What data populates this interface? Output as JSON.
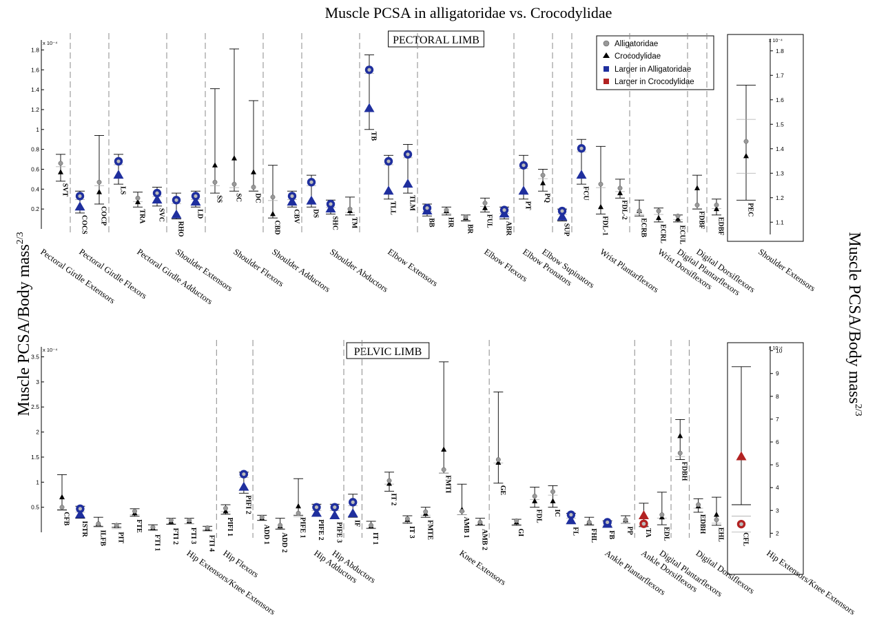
{
  "figure_title": "Muscle PCSA in  alligatoridae vs. Crocodylidae",
  "y_axis_label": "Muscle PCSA/Body mass",
  "y_axis_label_exp": "2/3",
  "legend": {
    "entries": [
      {
        "label": "Alligatoridae",
        "marker": "circle-gray"
      },
      {
        "label": "Crocodylidae",
        "marker": "triangle-black"
      },
      {
        "label": "Larger in Alligatoridae",
        "marker": "square-blue"
      },
      {
        "label": "Larger in Crocodylidae",
        "marker": "square-red"
      }
    ]
  },
  "colors": {
    "alligatoridae": "#999999",
    "crocodylidae": "#000000",
    "larger_alligatoridae": "#1f2f9e",
    "larger_crocodylidae": "#b22222",
    "gridline": "#888888"
  },
  "chart_data": [
    {
      "type": "scatter",
      "title": "PECTORAL LIMB",
      "scale_label": "x 10⁻⁴",
      "ylim": [
        0,
        1.9
      ],
      "yticks": [
        0.2,
        0.4,
        0.6,
        0.8,
        1,
        1.2,
        1.4,
        1.6,
        1.8
      ],
      "ytick_labels": [
        "0.2",
        "0.4",
        "0.6",
        "0.8",
        "1",
        "1.2",
        "1.4",
        "1.6",
        "1.8"
      ],
      "series": [
        {
          "name": "Alligatoridae"
        },
        {
          "name": "Crocodylidae"
        }
      ],
      "muscles": [
        {
          "name": "SVT",
          "a": 0.66,
          "c": 0.57,
          "err": [
            0.48,
            0.75
          ],
          "sig": ""
        },
        {
          "name": "COCS",
          "a": 0.33,
          "c": 0.22,
          "err": [
            0.16,
            0.38
          ],
          "sig": "a"
        },
        {
          "name": "COCP",
          "a": 0.47,
          "c": 0.37,
          "err": [
            0.25,
            0.94
          ],
          "sig": ""
        },
        {
          "name": "LS",
          "a": 0.68,
          "c": 0.54,
          "err": [
            0.45,
            0.75
          ],
          "sig": "a"
        },
        {
          "name": "TRA",
          "a": 0.31,
          "c": 0.27,
          "err": [
            0.22,
            0.37
          ],
          "sig": ""
        },
        {
          "name": "SVC",
          "a": 0.36,
          "c": 0.29,
          "err": [
            0.23,
            0.42
          ],
          "sig": "a"
        },
        {
          "name": "RHO",
          "a": 0.29,
          "c": 0.14,
          "err": [
            0.1,
            0.36
          ],
          "sig": "a"
        },
        {
          "name": "LD",
          "a": 0.33,
          "c": 0.27,
          "err": [
            0.22,
            0.38
          ],
          "sig": "a"
        },
        {
          "name": "SS",
          "a": 0.47,
          "c": 0.64,
          "err": [
            0.36,
            1.41
          ],
          "sig": ""
        },
        {
          "name": "SC",
          "a": 0.45,
          "c": 0.71,
          "err": [
            0.38,
            1.81
          ],
          "sig": ""
        },
        {
          "name": "DC",
          "a": 0.42,
          "c": 0.57,
          "err": [
            0.38,
            1.29
          ],
          "sig": ""
        },
        {
          "name": "CBD",
          "a": 0.32,
          "c": 0.15,
          "err": [
            0.11,
            0.64
          ],
          "sig": ""
        },
        {
          "name": "CBV",
          "a": 0.33,
          "c": 0.27,
          "err": [
            0.22,
            0.38
          ],
          "sig": "a"
        },
        {
          "name": "DS",
          "a": 0.47,
          "c": 0.28,
          "err": [
            0.22,
            0.54
          ],
          "sig": "a"
        },
        {
          "name": "SHC",
          "a": 0.25,
          "c": 0.2,
          "err": [
            0.15,
            0.29
          ],
          "sig": "a"
        },
        {
          "name": "TM",
          "a": 0.2,
          "c": 0.18,
          "err": [
            0.14,
            0.32
          ],
          "sig": ""
        },
        {
          "name": "TB",
          "a": 1.6,
          "c": 1.21,
          "err": [
            1.0,
            1.75
          ],
          "sig": "a"
        },
        {
          "name": "TLL",
          "a": 0.68,
          "c": 0.38,
          "err": [
            0.3,
            0.74
          ],
          "sig": "a"
        },
        {
          "name": "TLM",
          "a": 0.75,
          "c": 0.45,
          "err": [
            0.36,
            0.85
          ],
          "sig": "a"
        },
        {
          "name": "BB",
          "a": 0.21,
          "c": 0.18,
          "err": [
            0.13,
            0.25
          ],
          "sig": "a"
        },
        {
          "name": "HR",
          "a": 0.19,
          "c": 0.18,
          "err": [
            0.14,
            0.22
          ],
          "sig": ""
        },
        {
          "name": "BR",
          "a": 0.12,
          "c": 0.11,
          "err": [
            0.08,
            0.14
          ],
          "sig": ""
        },
        {
          "name": "FUL",
          "a": 0.26,
          "c": 0.21,
          "err": [
            0.17,
            0.31
          ],
          "sig": ""
        },
        {
          "name": "ABR",
          "a": 0.19,
          "c": 0.15,
          "err": [
            0.1,
            0.22
          ],
          "sig": "a"
        },
        {
          "name": "PT",
          "a": 0.64,
          "c": 0.38,
          "err": [
            0.3,
            0.74
          ],
          "sig": "a"
        },
        {
          "name": "PQ",
          "a": 0.54,
          "c": 0.46,
          "err": [
            0.38,
            0.6
          ],
          "sig": ""
        },
        {
          "name": "SUP",
          "a": 0.18,
          "c": 0.12,
          "err": [
            0.08,
            0.2
          ],
          "sig": "a"
        },
        {
          "name": "FCU",
          "a": 0.81,
          "c": 0.54,
          "err": [
            0.45,
            0.9
          ],
          "sig": "a"
        },
        {
          "name": "FDL-1",
          "a": 0.45,
          "c": 0.22,
          "err": [
            0.15,
            0.83
          ],
          "sig": ""
        },
        {
          "name": "FDL-2",
          "a": 0.41,
          "c": 0.36,
          "err": [
            0.31,
            0.5
          ],
          "sig": ""
        },
        {
          "name": "ECRB",
          "a": 0.18,
          "c": 0.18,
          "err": [
            0.13,
            0.29
          ],
          "sig": ""
        },
        {
          "name": "ECRL",
          "a": 0.18,
          "c": 0.11,
          "err": [
            0.07,
            0.21
          ],
          "sig": ""
        },
        {
          "name": "ECUL",
          "a": 0.13,
          "c": 0.1,
          "err": [
            0.07,
            0.14
          ],
          "sig": ""
        },
        {
          "name": "FDBF",
          "a": 0.24,
          "c": 0.41,
          "err": [
            0.2,
            0.54
          ],
          "sig": ""
        },
        {
          "name": "EDBF",
          "a": 0.24,
          "c": 0.2,
          "err": [
            0.14,
            0.3
          ],
          "sig": ""
        }
      ],
      "groups": [
        {
          "label": "Pectoral Girdle Extensors",
          "boundary_after": "SVT"
        },
        {
          "label": "Pectoral Girdle Flexors",
          "boundary_after": "COCP"
        },
        {
          "label": "Pectoral Girdle Adductors",
          "boundary_after": "SVC"
        },
        {
          "label": "Shoulder Extensors",
          "boundary_after": "LD"
        },
        {
          "label": "Shoulder Flexors",
          "boundary_after": "DC"
        },
        {
          "label": "Shoulder Adductors",
          "boundary_after": "CBV"
        },
        {
          "label": "Shoulder Abductors",
          "boundary_after": "TM"
        },
        {
          "label": "Elbow Extensors",
          "boundary_after": "TLM"
        },
        {
          "label": "Elbow Flexors",
          "boundary_after": "ABR"
        },
        {
          "label": "Elbow Pronators",
          "boundary_after": "PQ"
        },
        {
          "label": "Elbow Supinators",
          "boundary_after": "SUP"
        },
        {
          "label": "Wrist Plantarflexors",
          "boundary_after": "FDL-2"
        },
        {
          "label": "Wrist Dorsiflexors",
          "boundary_after": "ECUL"
        },
        {
          "label": "Digital Plantarflexors",
          "boundary_after": "FDBF"
        },
        {
          "label": "Digital Dorsiflexors",
          "boundary_after": ""
        }
      ],
      "inset": {
        "muscle": "PEC",
        "group_label": "Shoulder Extensors",
        "scale_label": "x 10⁻⁴",
        "ylim": [
          1.05,
          1.85
        ],
        "yticks": [
          1.1,
          1.2,
          1.3,
          1.4,
          1.5,
          1.6,
          1.7,
          1.8
        ],
        "ytick_labels": [
          "1.1",
          "1.2",
          "1.3",
          "1.4",
          "1.5",
          "1.6",
          "1.7",
          "1.8"
        ],
        "a": 1.43,
        "c": 1.37,
        "err": [
          1.19,
          1.66
        ],
        "a_err": [
          1.3,
          1.52
        ],
        "sig": ""
      }
    },
    {
      "type": "scatter",
      "title": "PELVIC LIMB",
      "scale_label": "x 10⁻⁴",
      "ylim": [
        0,
        3.7
      ],
      "yticks": [
        0.5,
        1,
        1.5,
        2,
        2.5,
        3,
        3.5
      ],
      "ytick_labels": [
        "0.5",
        "1",
        "1.5",
        "2",
        "2.5",
        "3",
        "3.5"
      ],
      "series": [
        {
          "name": "Alligatoridae"
        },
        {
          "name": "Crocodylidae"
        }
      ],
      "muscles": [
        {
          "name": "CFB",
          "a": 0.5,
          "c": 0.7,
          "err": [
            0.45,
            1.15
          ],
          "sig": ""
        },
        {
          "name": "ISTR",
          "a": 0.47,
          "c": 0.35,
          "err": [
            0.28,
            0.52
          ],
          "sig": "a"
        },
        {
          "name": "ILFB",
          "a": 0.17,
          "c": 0.17,
          "err": [
            0.12,
            0.3
          ],
          "sig": ""
        },
        {
          "name": "PIT",
          "a": 0.14,
          "c": 0.13,
          "err": [
            0.1,
            0.17
          ],
          "sig": ""
        },
        {
          "name": "FTE",
          "a": 0.42,
          "c": 0.38,
          "err": [
            0.32,
            0.47
          ],
          "sig": ""
        },
        {
          "name": "FTI 1",
          "a": 0.1,
          "c": 0.08,
          "err": [
            0.05,
            0.15
          ],
          "sig": ""
        },
        {
          "name": "FTI 2",
          "a": 0.24,
          "c": 0.21,
          "err": [
            0.16,
            0.28
          ],
          "sig": ""
        },
        {
          "name": "FTI 3",
          "a": 0.24,
          "c": 0.22,
          "err": [
            0.17,
            0.28
          ],
          "sig": ""
        },
        {
          "name": "FTI 4",
          "a": 0.09,
          "c": 0.07,
          "err": [
            0.04,
            0.12
          ],
          "sig": ""
        },
        {
          "name": "PIFI 1",
          "a": 0.48,
          "c": 0.42,
          "err": [
            0.36,
            0.55
          ],
          "sig": ""
        },
        {
          "name": "PIFI 2",
          "a": 1.16,
          "c": 0.9,
          "err": [
            0.78,
            1.2
          ],
          "sig": "a"
        },
        {
          "name": "ADD 1",
          "a": 0.3,
          "c": 0.28,
          "err": [
            0.24,
            0.34
          ],
          "sig": ""
        },
        {
          "name": "ADD 2",
          "a": 0.14,
          "c": 0.12,
          "err": [
            0.06,
            0.28
          ],
          "sig": ""
        },
        {
          "name": "PIFE 1",
          "a": 0.38,
          "c": 0.52,
          "err": [
            0.34,
            1.07
          ],
          "sig": ""
        },
        {
          "name": "PIFE 2",
          "a": 0.5,
          "c": 0.38,
          "err": [
            0.32,
            0.56
          ],
          "sig": "a"
        },
        {
          "name": "PIFE 3",
          "a": 0.5,
          "c": 0.33,
          "err": [
            0.27,
            0.56
          ],
          "sig": "a"
        },
        {
          "name": "IF",
          "a": 0.6,
          "c": 0.37,
          "err": [
            0.3,
            0.76
          ],
          "sig": "a"
        },
        {
          "name": "IT 1",
          "a": 0.14,
          "c": 0.12,
          "err": [
            0.08,
            0.22
          ],
          "sig": ""
        },
        {
          "name": "IT 2",
          "a": 1.03,
          "c": 0.97,
          "err": [
            0.82,
            1.2
          ],
          "sig": ""
        },
        {
          "name": "IT 3",
          "a": 0.27,
          "c": 0.25,
          "err": [
            0.18,
            0.33
          ],
          "sig": ""
        },
        {
          "name": "FMTE",
          "a": 0.41,
          "c": 0.37,
          "err": [
            0.3,
            0.5
          ],
          "sig": ""
        },
        {
          "name": "FMTI",
          "a": 1.25,
          "c": 1.65,
          "err": [
            1.18,
            3.4
          ],
          "sig": ""
        },
        {
          "name": "AMB 1",
          "a": 0.42,
          "c": 0.45,
          "err": [
            0.35,
            0.96
          ],
          "sig": ""
        },
        {
          "name": "AMB 2",
          "a": 0.2,
          "c": 0.19,
          "err": [
            0.14,
            0.28
          ],
          "sig": ""
        },
        {
          "name": "GE",
          "a": 1.45,
          "c": 1.39,
          "err": [
            0.98,
            2.8
          ],
          "sig": ""
        },
        {
          "name": "GI",
          "a": 0.23,
          "c": 0.2,
          "err": [
            0.14,
            0.26
          ],
          "sig": ""
        },
        {
          "name": "FDL",
          "a": 0.72,
          "c": 0.62,
          "err": [
            0.5,
            0.9
          ],
          "sig": ""
        },
        {
          "name": "IC",
          "a": 0.81,
          "c": 0.62,
          "err": [
            0.5,
            0.93
          ],
          "sig": ""
        },
        {
          "name": "FL",
          "a": 0.35,
          "c": 0.23,
          "err": [
            0.17,
            0.38
          ],
          "sig": "a"
        },
        {
          "name": "FHL",
          "a": 0.2,
          "c": 0.2,
          "err": [
            0.15,
            0.3
          ],
          "sig": ""
        },
        {
          "name": "FB",
          "a": 0.2,
          "c": 0.16,
          "err": [
            0.1,
            0.23
          ],
          "sig": "a"
        },
        {
          "name": "PP",
          "a": 0.25,
          "c": 0.24,
          "err": [
            0.18,
            0.33
          ],
          "sig": ""
        },
        {
          "name": "TA",
          "a": 0.17,
          "c": 0.33,
          "err": [
            0.12,
            0.58
          ],
          "sig": "c"
        },
        {
          "name": "EDL",
          "a": 0.35,
          "c": 0.3,
          "err": [
            0.15,
            0.8
          ],
          "sig": ""
        },
        {
          "name": "FDBH",
          "a": 1.58,
          "c": 1.92,
          "err": [
            1.45,
            2.25
          ],
          "sig": ""
        },
        {
          "name": "EDBH",
          "a": 0.55,
          "c": 0.52,
          "err": [
            0.4,
            0.67
          ],
          "sig": ""
        },
        {
          "name": "EHL",
          "a": 0.25,
          "c": 0.35,
          "err": [
            0.14,
            0.7
          ],
          "sig": ""
        }
      ],
      "groups": [
        {
          "label": "Hip Extensors/Knee Extensors",
          "boundary_after": "FTI 4"
        },
        {
          "label": "Hip Flexors",
          "boundary_after": "PIFI 2"
        },
        {
          "label": "Hip Adductors",
          "boundary_after": "PIFE 3"
        },
        {
          "label": "Hip Abductors",
          "boundary_after": "IF"
        },
        {
          "label": "Knee Extensors",
          "boundary_after": "AMB 2"
        },
        {
          "label": "Ankle Plantarflexors",
          "boundary_after": "PP"
        },
        {
          "label": "Ankle Dorsiflexors",
          "boundary_after": "EDL"
        },
        {
          "label": "Digital Plantarflexors",
          "boundary_after": "FDBH"
        },
        {
          "label": "Digital Dorsiflexors",
          "boundary_after": ""
        }
      ],
      "inset": {
        "muscle": "CFL",
        "group_label": "Hip Extensors/Knee Extensors",
        "scale_label": "x 10⁻⁴",
        "ylim": [
          1.8,
          10.2
        ],
        "yticks": [
          2,
          3,
          4,
          5,
          6,
          7,
          8,
          9,
          10
        ],
        "ytick_labels": [
          "2",
          "3",
          "4",
          "5",
          "6",
          "7",
          "8",
          "9",
          "10"
        ],
        "a": 2.4,
        "c": 5.35,
        "err": [
          3.25,
          9.3
        ],
        "a_err": [
          2.05,
          2.75
        ],
        "sig": "c"
      }
    }
  ]
}
